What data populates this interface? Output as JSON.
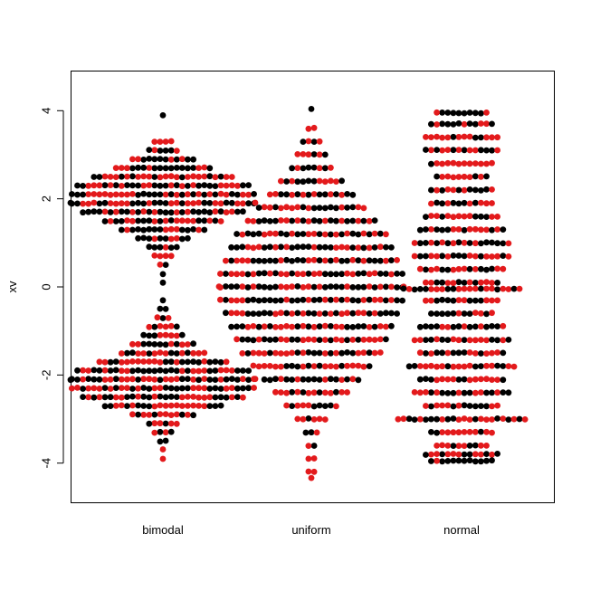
{
  "chart_data": {
    "type": "scatter",
    "subtype": "beeswarm",
    "title": "",
    "xlabel": "",
    "ylabel": "xv",
    "ylim": [
      -4.9,
      4.9
    ],
    "yticks": [
      -4,
      -2,
      0,
      2,
      4
    ],
    "ytick_labels": [
      "-4",
      "-2",
      "0",
      "2",
      "4"
    ],
    "categories": [
      "bimodal",
      "uniform",
      "normal"
    ],
    "colors": [
      "#000000",
      "#e31a1c"
    ],
    "grid": false,
    "legend": "none",
    "series": [
      {
        "category": "bimodal",
        "profile": [
          [
            3.9,
            1
          ],
          [
            3.3,
            4
          ],
          [
            3.1,
            6
          ],
          [
            2.9,
            12
          ],
          [
            2.7,
            18
          ],
          [
            2.5,
            26
          ],
          [
            2.3,
            32
          ],
          [
            2.1,
            34
          ],
          [
            1.9,
            36
          ],
          [
            1.7,
            30
          ],
          [
            1.5,
            22
          ],
          [
            1.3,
            16
          ],
          [
            1.1,
            10
          ],
          [
            0.9,
            6
          ],
          [
            0.7,
            4
          ],
          [
            0.5,
            2
          ],
          [
            0.3,
            1
          ],
          [
            0.1,
            1
          ],
          [
            -0.1,
            0
          ],
          [
            -0.3,
            1
          ],
          [
            -0.5,
            2
          ],
          [
            -0.7,
            3
          ],
          [
            -0.9,
            6
          ],
          [
            -1.1,
            8
          ],
          [
            -1.3,
            12
          ],
          [
            -1.5,
            16
          ],
          [
            -1.7,
            24
          ],
          [
            -1.9,
            32
          ],
          [
            -2.1,
            36
          ],
          [
            -2.3,
            34
          ],
          [
            -2.5,
            30
          ],
          [
            -2.7,
            22
          ],
          [
            -2.9,
            12
          ],
          [
            -3.1,
            6
          ],
          [
            -3.3,
            4
          ],
          [
            -3.5,
            2
          ],
          [
            -3.7,
            1
          ],
          [
            -3.9,
            1
          ]
        ]
      },
      {
        "category": "uniform",
        "profile": [
          [
            4.05,
            1
          ],
          [
            3.6,
            2
          ],
          [
            3.3,
            4
          ],
          [
            3.0,
            6
          ],
          [
            2.7,
            8
          ],
          [
            2.4,
            12
          ],
          [
            2.1,
            16
          ],
          [
            1.8,
            20
          ],
          [
            1.5,
            24
          ],
          [
            1.2,
            28
          ],
          [
            0.9,
            30
          ],
          [
            0.6,
            32
          ],
          [
            0.3,
            34
          ],
          [
            0.0,
            36
          ],
          [
            -0.3,
            34
          ],
          [
            -0.6,
            32
          ],
          [
            -0.9,
            30
          ],
          [
            -1.2,
            28
          ],
          [
            -1.5,
            26
          ],
          [
            -1.8,
            22
          ],
          [
            -2.1,
            18
          ],
          [
            -2.4,
            14
          ],
          [
            -2.7,
            10
          ],
          [
            -3.0,
            6
          ],
          [
            -3.3,
            3
          ],
          [
            -3.6,
            2
          ],
          [
            -3.9,
            2
          ],
          [
            -4.2,
            2
          ],
          [
            -4.35,
            1
          ]
        ]
      },
      {
        "category": "normal",
        "profile": [
          [
            3.95,
            10
          ],
          [
            3.7,
            12
          ],
          [
            3.4,
            14
          ],
          [
            3.1,
            14
          ],
          [
            2.8,
            12
          ],
          [
            2.5,
            10
          ],
          [
            2.2,
            12
          ],
          [
            1.9,
            12
          ],
          [
            1.6,
            14
          ],
          [
            1.3,
            16
          ],
          [
            1.0,
            18
          ],
          [
            0.7,
            18
          ],
          [
            0.4,
            16
          ],
          [
            0.1,
            14
          ],
          [
            -0.05,
            22
          ],
          [
            -0.3,
            14
          ],
          [
            -0.6,
            12
          ],
          [
            -0.9,
            16
          ],
          [
            -1.2,
            18
          ],
          [
            -1.5,
            16
          ],
          [
            -1.8,
            20
          ],
          [
            -2.1,
            16
          ],
          [
            -2.4,
            18
          ],
          [
            -2.7,
            14
          ],
          [
            -3.0,
            24
          ],
          [
            -3.3,
            12
          ],
          [
            -3.6,
            10
          ],
          [
            -3.8,
            14
          ],
          [
            -3.95,
            12
          ]
        ]
      }
    ]
  }
}
